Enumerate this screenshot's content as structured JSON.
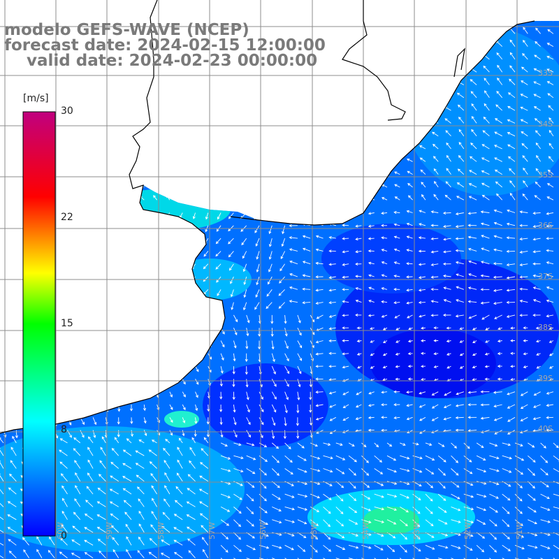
{
  "header": {
    "line1": "modelo GEFS-WAVE (NCEP)",
    "line2": "forecast date: 2024-02-15 12:00:00",
    "line3": "    valid date: 2024-02-23 00:00:00"
  },
  "colorbar": {
    "unit": "[m/s]",
    "ticks": [
      "30",
      "22",
      "15",
      "8",
      "0"
    ],
    "range": [
      0,
      30
    ],
    "colors": [
      "#0000ff",
      "#00ffff",
      "#00ff00",
      "#ffff00",
      "#ff0000",
      "#c0007f"
    ]
  },
  "grid": {
    "lat_labels": [
      "33S",
      "34S",
      "35S",
      "36S",
      "37S",
      "38S",
      "39S",
      "40S"
    ],
    "lon_labels": [
      "60W",
      "59W",
      "58W",
      "57W",
      "56W",
      "55W",
      "54W",
      "53W",
      "52W",
      "51W"
    ]
  },
  "colors": {
    "ocean_dark": "#0018f0",
    "ocean_mid": "#0070ff",
    "ocean_light": "#00c8ff",
    "ocean_cyan": "#00f0e8",
    "land": "#ffffff",
    "grid": "#8c8c8c",
    "coast": "#000000",
    "arrow": "#ffffff",
    "title": "#7a7a7a"
  }
}
